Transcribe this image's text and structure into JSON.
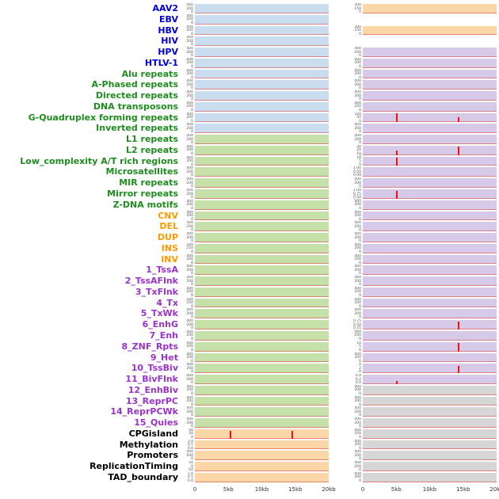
{
  "chart_data": {
    "type": "area",
    "title": "",
    "xlabel": "",
    "ylabel": "",
    "columns": 2,
    "x_axis": {
      "ticks": [
        "0",
        "5kb",
        "10kb",
        "15kb",
        "20kb"
      ],
      "range_bp": [
        0,
        20000
      ],
      "grid": false
    },
    "colors": {
      "label_virus": "#0000dd",
      "label_repeat": "#1e8c1e",
      "label_sv": "#ff9900",
      "label_state": "#9933cc",
      "label_other": "#000000",
      "panel_blue": "#c9ddef",
      "panel_green": "#c6e0aa",
      "panel_orange": "#fbd6a6",
      "panel_purple": "#d7c9e8",
      "panel_gray": "#d6d6d6",
      "spike": "#ee1111",
      "baseline": "rgba(221,60,60,0.55)"
    },
    "rows": [
      {
        "label": "AAV2",
        "group": "virus",
        "left": {
          "bg": "blue",
          "yticks": [
            "400",
            "200",
            "0"
          ],
          "spikes": []
        },
        "right": {
          "bg": "orange",
          "yticks": [
            "300",
            "150",
            "0"
          ],
          "spikes": []
        }
      },
      {
        "label": "EBV",
        "group": "virus",
        "left": {
          "bg": "blue",
          "yticks": [
            "400",
            "200",
            "0"
          ],
          "spikes": []
        },
        "right": {
          "bg": null,
          "yticks": [],
          "spikes": []
        }
      },
      {
        "label": "HBV",
        "group": "virus",
        "left": {
          "bg": "blue",
          "yticks": [
            "400",
            "200",
            "0"
          ],
          "spikes": []
        },
        "right": {
          "bg": "orange",
          "yticks": [
            "300",
            "150",
            "0"
          ],
          "spikes": []
        }
      },
      {
        "label": "HIV",
        "group": "virus",
        "left": {
          "bg": "blue",
          "yticks": [
            "400",
            "200",
            "0"
          ],
          "spikes": []
        },
        "right": {
          "bg": null,
          "yticks": [],
          "spikes": []
        }
      },
      {
        "label": "HPV",
        "group": "virus",
        "left": {
          "bg": "blue",
          "yticks": [
            "400",
            "200",
            "0"
          ],
          "spikes": []
        },
        "right": {
          "bg": "purple",
          "yticks": [
            "400",
            "200",
            "0"
          ],
          "spikes": []
        }
      },
      {
        "label": "HTLV-1",
        "group": "virus",
        "left": {
          "bg": "blue",
          "yticks": [
            "400",
            "200",
            "0"
          ],
          "spikes": []
        },
        "right": {
          "bg": "purple",
          "yticks": [
            "400",
            "200",
            "0"
          ],
          "spikes": []
        }
      },
      {
        "label": "Alu repeats",
        "group": "repeat",
        "left": {
          "bg": "blue",
          "yticks": [
            "400",
            "200",
            "0"
          ],
          "spikes": []
        },
        "right": {
          "bg": "purple",
          "yticks": [
            "400",
            "200",
            "0"
          ],
          "spikes": []
        }
      },
      {
        "label": "A-Phased repeats",
        "group": "repeat",
        "left": {
          "bg": "blue",
          "yticks": [
            "400",
            "200",
            "0"
          ],
          "spikes": []
        },
        "right": {
          "bg": "purple",
          "yticks": [
            "400",
            "200",
            "0"
          ],
          "spikes": []
        }
      },
      {
        "label": "Directed repeats",
        "group": "repeat",
        "left": {
          "bg": "blue",
          "yticks": [
            "400",
            "200",
            "0"
          ],
          "spikes": []
        },
        "right": {
          "bg": "purple",
          "yticks": [
            "400",
            "200",
            "0"
          ],
          "spikes": []
        }
      },
      {
        "label": "DNA transposons",
        "group": "repeat",
        "left": {
          "bg": "blue",
          "yticks": [
            "400",
            "200",
            "0"
          ],
          "spikes": []
        },
        "right": {
          "bg": "purple",
          "yticks": [
            "400",
            "200",
            "0"
          ],
          "spikes": []
        }
      },
      {
        "label": "G-Quadruplex forming repeats",
        "group": "repeat",
        "left": {
          "bg": "blue",
          "yticks": [
            "400",
            "200",
            "0"
          ],
          "spikes": []
        },
        "right": {
          "bg": "purple",
          "yticks": [
            "100",
            "50",
            "0"
          ],
          "spikes": [
            {
              "x": 0.25,
              "h": 0.95
            },
            {
              "x": 0.71,
              "h": 0.55
            }
          ]
        }
      },
      {
        "label": "Inverted repeats",
        "group": "repeat",
        "left": {
          "bg": "blue",
          "yticks": [
            "400",
            "200",
            "0"
          ],
          "spikes": []
        },
        "right": {
          "bg": "purple",
          "yticks": [
            "400",
            "200",
            "0"
          ],
          "spikes": []
        }
      },
      {
        "label": "L1 repeats",
        "group": "repeat",
        "left": {
          "bg": "green",
          "yticks": [
            "400",
            "200",
            "0"
          ],
          "spikes": []
        },
        "right": {
          "bg": "purple",
          "yticks": [
            "400",
            "200",
            "0"
          ],
          "spikes": []
        }
      },
      {
        "label": "L2 repeats",
        "group": "repeat",
        "left": {
          "bg": "green",
          "yticks": [
            "400",
            "200",
            "0"
          ],
          "spikes": []
        },
        "right": {
          "bg": "purple",
          "yticks": [
            "30",
            "20",
            "10",
            "0"
          ],
          "spikes": [
            {
              "x": 0.25,
              "h": 0.5
            },
            {
              "x": 0.71,
              "h": 0.9
            }
          ]
        }
      },
      {
        "label": "Low_complexity A/T rich regions",
        "group": "repeat",
        "left": {
          "bg": "green",
          "yticks": [
            "400",
            "200",
            "0"
          ],
          "spikes": []
        },
        "right": {
          "bg": "purple",
          "yticks": [
            "10",
            "5",
            "0"
          ],
          "spikes": [
            {
              "x": 0.25,
              "h": 0.9
            }
          ]
        }
      },
      {
        "label": "Microsatellites",
        "group": "repeat",
        "left": {
          "bg": "green",
          "yticks": [
            "400",
            "200",
            "0"
          ],
          "spikes": []
        },
        "right": {
          "bg": "purple",
          "yticks": [
            "1.00",
            "0.50",
            "0.00"
          ],
          "spikes": []
        }
      },
      {
        "label": "MIR repeats",
        "group": "repeat",
        "left": {
          "bg": "green",
          "yticks": [
            "400",
            "200",
            "0"
          ],
          "spikes": []
        },
        "right": {
          "bg": "purple",
          "yticks": [
            "400",
            "200",
            "0"
          ],
          "spikes": []
        }
      },
      {
        "label": "Mirror repeats",
        "group": "repeat",
        "left": {
          "bg": "green",
          "yticks": [
            "400",
            "200",
            "0"
          ],
          "spikes": []
        },
        "right": {
          "bg": "purple",
          "yticks": [
            "1.00",
            "0.75",
            "0.50",
            "0.25"
          ],
          "spikes": [
            {
              "x": 0.25,
              "h": 0.85
            }
          ]
        }
      },
      {
        "label": "Z-DNA motifs",
        "group": "repeat",
        "left": {
          "bg": "green",
          "yticks": [
            "400",
            "200",
            "0"
          ],
          "spikes": []
        },
        "right": {
          "bg": "purple",
          "yticks": [
            "400",
            "200",
            "0"
          ],
          "spikes": []
        }
      },
      {
        "label": "CNV",
        "group": "sv",
        "left": {
          "bg": "green",
          "yticks": [
            "400",
            "200",
            "0"
          ],
          "spikes": []
        },
        "right": {
          "bg": "purple",
          "yticks": [
            "400",
            "200",
            "0"
          ],
          "spikes": []
        }
      },
      {
        "label": "DEL",
        "group": "sv",
        "left": {
          "bg": "green",
          "yticks": [
            "400",
            "200",
            "0"
          ],
          "spikes": []
        },
        "right": {
          "bg": "purple",
          "yticks": [
            "400",
            "200",
            "0"
          ],
          "spikes": []
        }
      },
      {
        "label": "DUP",
        "group": "sv",
        "left": {
          "bg": "green",
          "yticks": [
            "400",
            "200",
            "0"
          ],
          "spikes": []
        },
        "right": {
          "bg": "purple",
          "yticks": [
            "400",
            "200",
            "0"
          ],
          "spikes": []
        }
      },
      {
        "label": "INS",
        "group": "sv",
        "left": {
          "bg": "green",
          "yticks": [
            "500",
            "250",
            "0"
          ],
          "spikes": []
        },
        "right": {
          "bg": "purple",
          "yticks": [
            "400",
            "200",
            "0"
          ],
          "spikes": []
        }
      },
      {
        "label": "INV",
        "group": "sv",
        "left": {
          "bg": "green",
          "yticks": [
            "400",
            "200",
            "0"
          ],
          "spikes": []
        },
        "right": {
          "bg": "purple",
          "yticks": [
            "400",
            "200",
            "0"
          ],
          "spikes": []
        }
      },
      {
        "label": "1_TssA",
        "group": "state",
        "left": {
          "bg": "green",
          "yticks": [
            "400",
            "200",
            "0"
          ],
          "spikes": []
        },
        "right": {
          "bg": "purple",
          "yticks": [
            "400",
            "200",
            "0"
          ],
          "spikes": []
        }
      },
      {
        "label": "2_TssAFlnk",
        "group": "state",
        "left": {
          "bg": "green",
          "yticks": [
            "400",
            "200",
            "0"
          ],
          "spikes": []
        },
        "right": {
          "bg": "purple",
          "yticks": [
            "400",
            "200",
            "0"
          ],
          "spikes": []
        }
      },
      {
        "label": "3_TxFlnk",
        "group": "state",
        "left": {
          "bg": "green",
          "yticks": [
            "400",
            "200",
            "0"
          ],
          "spikes": []
        },
        "right": {
          "bg": "purple",
          "yticks": [
            "400",
            "200",
            "0"
          ],
          "spikes": []
        }
      },
      {
        "label": "4_Tx",
        "group": "state",
        "left": {
          "bg": "green",
          "yticks": [
            "500",
            "250",
            "0"
          ],
          "spikes": []
        },
        "right": {
          "bg": "purple",
          "yticks": [
            "400",
            "200",
            "0"
          ],
          "spikes": []
        }
      },
      {
        "label": "5_TxWk",
        "group": "state",
        "left": {
          "bg": "green",
          "yticks": [
            "400",
            "200",
            "0"
          ],
          "spikes": []
        },
        "right": {
          "bg": "purple",
          "yticks": [
            "400",
            "200",
            "0"
          ],
          "spikes": []
        }
      },
      {
        "label": "6_EnhG",
        "group": "state",
        "left": {
          "bg": "green",
          "yticks": [
            "400",
            "200",
            "0"
          ],
          "spikes": []
        },
        "right": {
          "bg": "purple",
          "yticks": [
            "0.75",
            "0.50",
            "0.25",
            "0.00"
          ],
          "spikes": [
            {
              "x": 0.71,
              "h": 0.85
            }
          ]
        }
      },
      {
        "label": "7_Enh",
        "group": "state",
        "left": {
          "bg": "green",
          "yticks": [
            "400",
            "200",
            "0"
          ],
          "spikes": []
        },
        "right": {
          "bg": "purple",
          "yticks": [
            "400",
            "200",
            "0"
          ],
          "spikes": []
        }
      },
      {
        "label": "8_ZNF_Rpts",
        "group": "state",
        "left": {
          "bg": "green",
          "yticks": [
            "400",
            "200",
            "0"
          ],
          "spikes": []
        },
        "right": {
          "bg": "purple",
          "yticks": [
            "10",
            "5",
            "0"
          ],
          "spikes": [
            {
              "x": 0.71,
              "h": 0.9
            }
          ]
        }
      },
      {
        "label": "9_Het",
        "group": "state",
        "left": {
          "bg": "green",
          "yticks": [
            "400",
            "200",
            "0"
          ],
          "spikes": []
        },
        "right": {
          "bg": "purple",
          "yticks": [
            "400",
            "200",
            "0"
          ],
          "spikes": []
        }
      },
      {
        "label": "10_TssBiv",
        "group": "state",
        "left": {
          "bg": "green",
          "yticks": [
            "400",
            "200",
            "0"
          ],
          "spikes": []
        },
        "right": {
          "bg": "purple",
          "yticks": [
            "4",
            "2",
            "0"
          ],
          "spikes": [
            {
              "x": 0.71,
              "h": 0.8
            }
          ]
        }
      },
      {
        "label": "11_BivFlnk",
        "group": "state",
        "left": {
          "bg": "green",
          "yticks": [
            "400",
            "200",
            "0"
          ],
          "spikes": []
        },
        "right": {
          "bg": "purple",
          "yticks": [
            "0.4",
            "0.2",
            "0.0"
          ],
          "spikes": [
            {
              "x": 0.25,
              "h": 0.3
            }
          ]
        }
      },
      {
        "label": "12_EnhBiv",
        "group": "state",
        "left": {
          "bg": "green",
          "yticks": [
            "400",
            "200",
            "0"
          ],
          "spikes": []
        },
        "right": {
          "bg": "gray",
          "yticks": [
            "400",
            "200",
            "0"
          ],
          "spikes": []
        }
      },
      {
        "label": "13_ReprPC",
        "group": "state",
        "left": {
          "bg": "green",
          "yticks": [
            "400",
            "200",
            "0"
          ],
          "spikes": []
        },
        "right": {
          "bg": "gray",
          "yticks": [
            "400",
            "200",
            "0"
          ],
          "spikes": []
        }
      },
      {
        "label": "14_ReprPCWk",
        "group": "state",
        "left": {
          "bg": "green",
          "yticks": [
            "400",
            "200",
            "0"
          ],
          "spikes": []
        },
        "right": {
          "bg": "gray",
          "yticks": [
            "400",
            "200",
            "0"
          ],
          "spikes": []
        }
      },
      {
        "label": "15_Quies",
        "group": "state",
        "left": {
          "bg": "green",
          "yticks": [
            "400",
            "200",
            "0"
          ],
          "spikes": []
        },
        "right": {
          "bg": "gray",
          "yticks": [
            "400",
            "200",
            "0"
          ],
          "spikes": []
        }
      },
      {
        "label": "CPGisland",
        "group": "other",
        "left": {
          "bg": "orange",
          "yticks": [
            "40",
            "20",
            "0"
          ],
          "spikes": [
            {
              "x": 0.26,
              "h": 0.85
            },
            {
              "x": 0.72,
              "h": 0.8
            }
          ]
        },
        "right": {
          "bg": "gray",
          "yticks": [
            "400",
            "200",
            "0"
          ],
          "spikes": []
        }
      },
      {
        "label": "Methylation",
        "group": "other",
        "left": {
          "bg": "orange",
          "yticks": [
            "1.0",
            "0.5",
            "0.0"
          ],
          "spikes": []
        },
        "right": {
          "bg": "gray",
          "yticks": [
            "400",
            "200",
            "0"
          ],
          "spikes": []
        }
      },
      {
        "label": "Promoters",
        "group": "other",
        "left": {
          "bg": "orange",
          "yticks": [
            "400",
            "200",
            "0"
          ],
          "spikes": []
        },
        "right": {
          "bg": "gray",
          "yticks": [
            "400",
            "200",
            "0"
          ],
          "spikes": []
        }
      },
      {
        "label": "ReplicationTiming",
        "group": "other",
        "left": {
          "bg": "orange",
          "yticks": [
            "50",
            "0",
            "-50"
          ],
          "spikes": []
        },
        "right": {
          "bg": "gray",
          "yticks": [
            "400",
            "200",
            "0"
          ],
          "spikes": []
        }
      },
      {
        "label": "TAD_boundary",
        "group": "other",
        "left": {
          "bg": "orange",
          "yticks": [
            "1.0",
            "0.5",
            "0.0"
          ],
          "spikes": []
        },
        "right": {
          "bg": "gray",
          "yticks": [
            "400",
            "200",
            "0"
          ],
          "spikes": []
        }
      }
    ]
  }
}
